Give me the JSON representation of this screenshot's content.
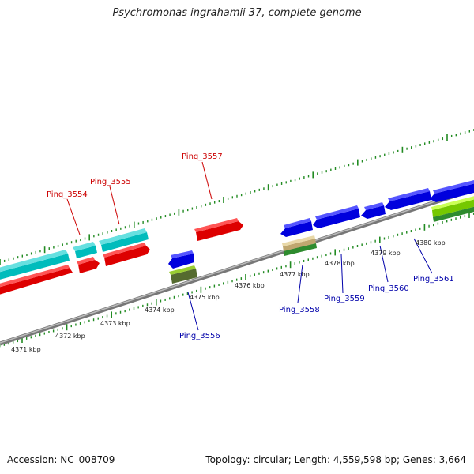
{
  "title": "Psychromonas ingrahamii 37, complete genome",
  "footer": {
    "accession": "Accession: NC_008709",
    "topology": "Topology: circular; Length: 4,559,598 bp; Genes: 3,664"
  },
  "scale_labels": [
    "4371 kbp",
    "4372 kbp",
    "4373 kbp",
    "4374 kbp",
    "4375 kbp",
    "4376 kbp",
    "4377 kbp",
    "4378 kbp",
    "4379 kbp",
    "4380 kbp"
  ],
  "gene_labels": {
    "plus": [
      "Ping_3554",
      "Ping_3555",
      "Ping_3557"
    ],
    "minus": [
      "Ping_3556",
      "Ping_3558",
      "Ping_3559",
      "Ping_3560",
      "Ping_3561"
    ]
  },
  "colors": {
    "plus_strand_label": "#cc0000",
    "minus_strand_label": "#0000aa",
    "cds": "#ff0000",
    "rna": "#00c8c8",
    "reverse_cds": "#0000ee",
    "other_feature": "#6b8e23",
    "misc_feature": "#c8b478",
    "bright_feature": "#aaff00",
    "backbone": "#888888",
    "ticks": "#228b22"
  }
}
